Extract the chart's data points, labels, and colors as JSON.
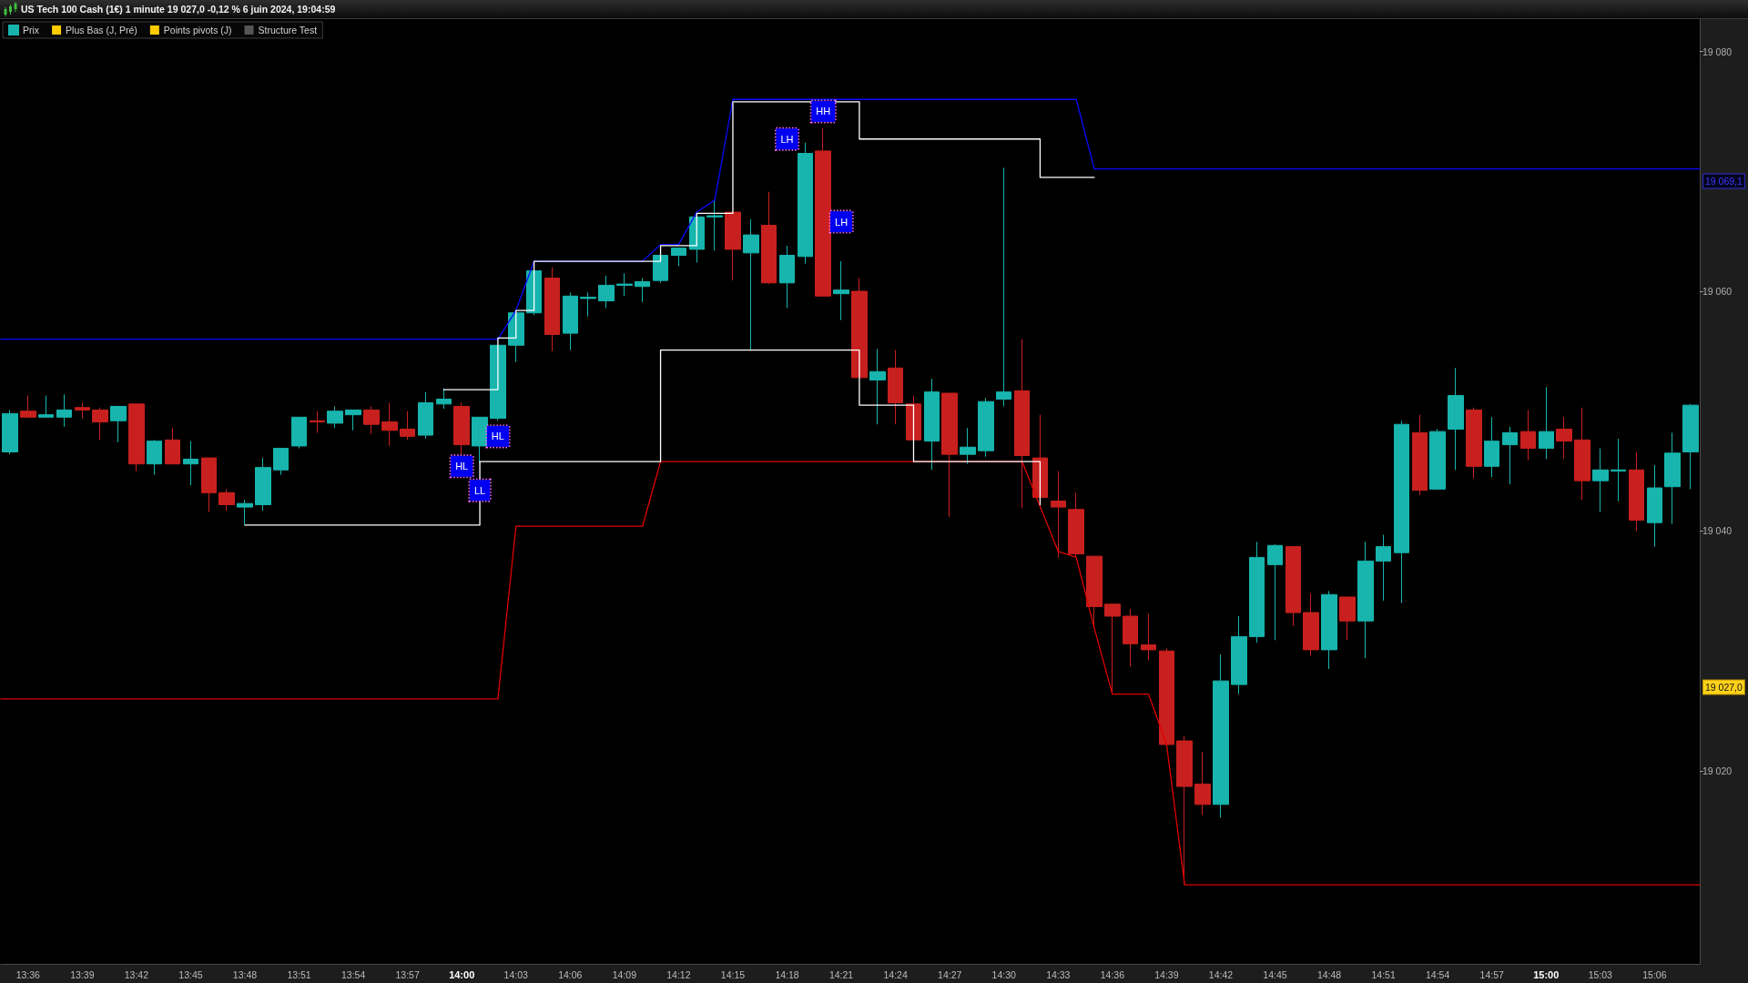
{
  "chart_data": {
    "type": "candlestick",
    "title": "US Tech 100 Cash (1€) 1 minute 19 027,0 -0,12 % 6 juin 2024, 19:04:59",
    "x": [
      "2024-06-06T13:35",
      "2024-06-06T13:36",
      "2024-06-06T13:37",
      "2024-06-06T13:38",
      "2024-06-06T13:39",
      "2024-06-06T13:40",
      "2024-06-06T13:41",
      "2024-06-06T13:42",
      "2024-06-06T13:43",
      "2024-06-06T13:44",
      "2024-06-06T13:45",
      "2024-06-06T13:46",
      "2024-06-06T13:47",
      "2024-06-06T13:48",
      "2024-06-06T13:49",
      "2024-06-06T13:50",
      "2024-06-06T13:51",
      "2024-06-06T13:52",
      "2024-06-06T13:53",
      "2024-06-06T13:54",
      "2024-06-06T13:55",
      "2024-06-06T13:56",
      "2024-06-06T13:57",
      "2024-06-06T13:58",
      "2024-06-06T13:59",
      "2024-06-06T14:00",
      "2024-06-06T14:01",
      "2024-06-06T14:02",
      "2024-06-06T14:03",
      "2024-06-06T14:04",
      "2024-06-06T14:05",
      "2024-06-06T14:06",
      "2024-06-06T14:07",
      "2024-06-06T14:08",
      "2024-06-06T14:09",
      "2024-06-06T14:10",
      "2024-06-06T14:11",
      "2024-06-06T14:12",
      "2024-06-06T14:13",
      "2024-06-06T14:14",
      "2024-06-06T14:15",
      "2024-06-06T14:16",
      "2024-06-06T14:17",
      "2024-06-06T14:18",
      "2024-06-06T14:19",
      "2024-06-06T14:20",
      "2024-06-06T14:21",
      "2024-06-06T14:22",
      "2024-06-06T14:23",
      "2024-06-06T14:24",
      "2024-06-06T14:25",
      "2024-06-06T14:26",
      "2024-06-06T14:27",
      "2024-06-06T14:28",
      "2024-06-06T14:29",
      "2024-06-06T14:30",
      "2024-06-06T14:31",
      "2024-06-06T14:32",
      "2024-06-06T14:33",
      "2024-06-06T14:34",
      "2024-06-06T14:35",
      "2024-06-06T14:36",
      "2024-06-06T14:37",
      "2024-06-06T14:38",
      "2024-06-06T14:39",
      "2024-06-06T14:40",
      "2024-06-06T14:41",
      "2024-06-06T14:42",
      "2024-06-06T14:43",
      "2024-06-06T14:44",
      "2024-06-06T14:45",
      "2024-06-06T14:46",
      "2024-06-06T14:47",
      "2024-06-06T14:48",
      "2024-06-06T14:49",
      "2024-06-06T14:50",
      "2024-06-06T14:51",
      "2024-06-06T14:52",
      "2024-06-06T14:53",
      "2024-06-06T14:54",
      "2024-06-06T14:55",
      "2024-06-06T14:56",
      "2024-06-06T14:57",
      "2024-06-06T14:58",
      "2024-06-06T14:59",
      "2024-06-06T15:00",
      "2024-06-06T15:01",
      "2024-06-06T15:02",
      "2024-06-06T15:03",
      "2024-06-06T15:04",
      "2024-06-06T15:05",
      "2024-06-06T15:06",
      "2024-06-06T15:07",
      "2024-06-06T15:08"
    ],
    "xlim": [
      "2024-06-06T13:34:30",
      "2024-06-06T15:08:30"
    ],
    "xticks": [
      {
        "value": "2024-06-06T13:36",
        "label": "13:36"
      },
      {
        "value": "2024-06-06T13:39",
        "label": "13:39"
      },
      {
        "value": "2024-06-06T13:42",
        "label": "13:42"
      },
      {
        "value": "2024-06-06T13:45",
        "label": "13:45"
      },
      {
        "value": "2024-06-06T13:48",
        "label": "13:48"
      },
      {
        "value": "2024-06-06T13:51",
        "label": "13:51"
      },
      {
        "value": "2024-06-06T13:54",
        "label": "13:54"
      },
      {
        "value": "2024-06-06T13:57",
        "label": "13:57"
      },
      {
        "value": "2024-06-06T14:00",
        "label": "14:00"
      },
      {
        "value": "2024-06-06T14:03",
        "label": "14:03"
      },
      {
        "value": "2024-06-06T14:06",
        "label": "14:06"
      },
      {
        "value": "2024-06-06T14:09",
        "label": "14:09"
      },
      {
        "value": "2024-06-06T14:12",
        "label": "14:12"
      },
      {
        "value": "2024-06-06T14:15",
        "label": "14:15"
      },
      {
        "value": "2024-06-06T14:18",
        "label": "14:18"
      },
      {
        "value": "2024-06-06T14:21",
        "label": "14:21"
      },
      {
        "value": "2024-06-06T14:24",
        "label": "14:24"
      },
      {
        "value": "2024-06-06T14:27",
        "label": "14:27"
      },
      {
        "value": "2024-06-06T14:30",
        "label": "14:30"
      },
      {
        "value": "2024-06-06T14:33",
        "label": "14:33"
      },
      {
        "value": "2024-06-06T14:36",
        "label": "14:36"
      },
      {
        "value": "2024-06-06T14:39",
        "label": "14:39"
      },
      {
        "value": "2024-06-06T14:42",
        "label": "14:42"
      },
      {
        "value": "2024-06-06T14:45",
        "label": "14:45"
      },
      {
        "value": "2024-06-06T14:48",
        "label": "14:48"
      },
      {
        "value": "2024-06-06T14:51",
        "label": "14:51"
      },
      {
        "value": "2024-06-06T14:54",
        "label": "14:54"
      },
      {
        "value": "2024-06-06T14:57",
        "label": "14:57"
      },
      {
        "value": "2024-06-06T15:00",
        "label": "15:00"
      },
      {
        "value": "2024-06-06T15:03",
        "label": "15:03"
      },
      {
        "value": "2024-06-06T15:06",
        "label": "15:06"
      }
    ],
    "ylim": [
      19003.9,
      19082.7
    ],
    "yticks": [
      {
        "value": 19020,
        "label": "19 020"
      },
      {
        "value": 19040,
        "label": "19 040"
      },
      {
        "value": 19060,
        "label": "19 060"
      },
      {
        "value": 19080,
        "label": "19 080"
      }
    ],
    "legend": "top left",
    "grid": false,
    "marker": "none",
    "line_style": "solid",
    "series": [
      {
        "name": "Prix",
        "ohlc": [
          [
            19046.6,
            19050.1,
            19046.4,
            19049.8
          ],
          [
            19050.0,
            19051.3,
            19049.5,
            19049.5
          ],
          [
            19049.5,
            19051.3,
            19049.5,
            19049.7
          ],
          [
            19049.5,
            19051.4,
            19048.7,
            19050.1
          ],
          [
            19050.3,
            19050.7,
            19049.4,
            19050.1
          ],
          [
            19050.1,
            19050.3,
            19047.6,
            19049.1
          ],
          [
            19049.2,
            19050.4,
            19047.4,
            19050.4
          ],
          [
            19050.6,
            19050.6,
            19045.0,
            19045.6
          ],
          [
            19045.6,
            19047.6,
            19044.7,
            19047.5
          ],
          [
            19047.6,
            19048.6,
            19045.6,
            19045.6
          ],
          [
            19045.6,
            19047.5,
            19043.8,
            19046.0
          ],
          [
            19046.1,
            19046.1,
            19041.6,
            19043.2
          ],
          [
            19043.2,
            19043.5,
            19041.7,
            19042.2
          ],
          [
            19042.0,
            19042.6,
            19040.5,
            19042.3
          ],
          [
            19042.2,
            19046.1,
            19041.7,
            19045.3
          ],
          [
            19045.1,
            19046.9,
            19044.7,
            19046.9
          ],
          [
            19047.1,
            19049.5,
            19046.9,
            19049.5
          ],
          [
            19049.2,
            19050.0,
            19048.2,
            19049.1
          ],
          [
            19049.0,
            19050.4,
            19048.6,
            19050.0
          ],
          [
            19049.7,
            19050.1,
            19048.4,
            19050.1
          ],
          [
            19050.1,
            19050.4,
            19048.1,
            19048.9
          ],
          [
            19049.1,
            19050.7,
            19047.1,
            19048.4
          ],
          [
            19048.5,
            19050.0,
            19047.6,
            19047.9
          ],
          [
            19048.0,
            19051.6,
            19047.7,
            19050.7
          ],
          [
            19050.6,
            19051.9,
            19050.2,
            19051.0
          ],
          [
            19050.4,
            19050.7,
            19046.4,
            19047.2
          ],
          [
            19047.1,
            19049.5,
            19045.7,
            19049.5
          ],
          [
            19049.4,
            19055.5,
            19049.2,
            19055.5
          ],
          [
            19055.5,
            19058.4,
            19054.1,
            19058.2
          ],
          [
            19058.2,
            19061.7,
            19058.0,
            19061.7
          ],
          [
            19061.1,
            19062.0,
            19055.0,
            19056.4
          ],
          [
            19056.5,
            19059.9,
            19055.1,
            19059.6
          ],
          [
            19059.4,
            19059.9,
            19057.9,
            19059.5
          ],
          [
            19059.2,
            19061.3,
            19058.6,
            19060.5
          ],
          [
            19060.5,
            19061.5,
            19059.6,
            19060.6
          ],
          [
            19060.4,
            19061.1,
            19059.1,
            19060.8
          ],
          [
            19060.9,
            19063.0,
            19060.7,
            19063.0
          ],
          [
            19063.0,
            19063.6,
            19062.1,
            19063.6
          ],
          [
            19063.5,
            19066.5,
            19062.4,
            19066.2
          ],
          [
            19066.2,
            19067.6,
            19063.4,
            19066.3
          ],
          [
            19066.6,
            19066.6,
            19060.9,
            19063.5
          ],
          [
            19063.2,
            19066.0,
            19055.1,
            19064.7
          ],
          [
            19065.5,
            19068.3,
            19060.6,
            19060.7
          ],
          [
            19060.7,
            19063.8,
            19058.6,
            19063.0
          ],
          [
            19062.9,
            19072.4,
            19062.3,
            19071.5
          ],
          [
            19071.7,
            19073.6,
            19059.6,
            19059.6
          ],
          [
            19059.8,
            19062.5,
            19057.6,
            19060.1
          ],
          [
            19060.0,
            19061.1,
            19052.8,
            19052.8
          ],
          [
            19052.6,
            19055.2,
            19048.9,
            19053.3
          ],
          [
            19053.6,
            19055.1,
            19048.9,
            19050.7
          ],
          [
            19050.6,
            19051.3,
            19047.6,
            19047.6
          ],
          [
            19047.5,
            19052.7,
            19045.1,
            19051.6
          ],
          [
            19051.5,
            19051.5,
            19041.2,
            19046.4
          ],
          [
            19046.4,
            19048.6,
            19045.6,
            19047.0
          ],
          [
            19046.7,
            19051.1,
            19046.2,
            19050.8
          ],
          [
            19051.0,
            19070.3,
            19050.4,
            19051.6
          ],
          [
            19051.7,
            19056.0,
            19041.9,
            19046.3
          ],
          [
            19046.1,
            19049.7,
            19041.9,
            19042.8
          ],
          [
            19042.5,
            19045.0,
            19037.8,
            19042.0
          ],
          [
            19041.8,
            19043.2,
            19037.8,
            19038.1
          ],
          [
            19037.9,
            19037.9,
            19031.9,
            19033.7
          ],
          [
            19033.9,
            19033.9,
            19026.4,
            19032.9
          ],
          [
            19032.9,
            19033.5,
            19028.7,
            19030.6
          ],
          [
            19030.5,
            19033.1,
            19029.2,
            19030.1
          ],
          [
            19030.0,
            19030.2,
            19022.2,
            19022.2
          ],
          [
            19022.5,
            19022.9,
            19010.5,
            19018.7
          ],
          [
            19018.9,
            19021.6,
            19016.3,
            19017.2
          ],
          [
            19017.2,
            19029.7,
            19016.1,
            19027.5
          ],
          [
            19027.2,
            19032.9,
            19026.4,
            19031.2
          ],
          [
            19031.2,
            19039.1,
            19030.7,
            19037.8
          ],
          [
            19037.2,
            19038.9,
            19030.9,
            19038.8
          ],
          [
            19038.7,
            19038.7,
            19032.1,
            19033.2
          ],
          [
            19033.2,
            19034.8,
            19029.6,
            19030.1
          ],
          [
            19030.1,
            19035.0,
            19028.5,
            19034.7
          ],
          [
            19034.5,
            19034.5,
            19030.9,
            19032.5
          ],
          [
            19032.5,
            19039.1,
            19029.4,
            19037.5
          ],
          [
            19037.5,
            19039.7,
            19034.2,
            19038.7
          ],
          [
            19038.2,
            19049.2,
            19034.0,
            19048.9
          ],
          [
            19048.2,
            19049.7,
            19043.0,
            19043.4
          ],
          [
            19043.5,
            19048.5,
            19043.5,
            19048.3
          ],
          [
            19048.5,
            19053.6,
            19045.1,
            19051.3
          ],
          [
            19050.1,
            19050.3,
            19044.4,
            19045.4
          ],
          [
            19045.4,
            19049.5,
            19044.5,
            19047.5
          ],
          [
            19047.2,
            19048.7,
            19043.9,
            19048.2
          ],
          [
            19048.3,
            19050.1,
            19045.9,
            19046.9
          ],
          [
            19046.9,
            19052.0,
            19046.0,
            19048.3
          ],
          [
            19048.5,
            19049.5,
            19046.0,
            19047.5
          ],
          [
            19047.6,
            19050.3,
            19042.6,
            19044.2
          ],
          [
            19044.2,
            19046.9,
            19041.6,
            19045.1
          ],
          [
            19045.0,
            19047.7,
            19042.5,
            19045.1
          ],
          [
            19045.1,
            19046.6,
            19040.0,
            19040.9
          ],
          [
            19040.7,
            19045.5,
            19038.7,
            19043.6
          ],
          [
            19043.7,
            19048.2,
            19040.6,
            19046.5
          ],
          [
            19046.6,
            19050.6,
            19043.5,
            19050.5
          ]
        ],
        "colors": [
          "#17b5ad",
          "#c8201e",
          "#17b5ad",
          "#17b5ad",
          "#c8201e",
          "#c8201e",
          "#17b5ad",
          "#c8201e",
          "#17b5ad",
          "#c8201e",
          "#17b5ad",
          "#c8201e",
          "#c8201e",
          "#17b5ad",
          "#17b5ad",
          "#17b5ad",
          "#17b5ad",
          "#c8201e",
          "#17b5ad",
          "#17b5ad",
          "#c8201e",
          "#c8201e",
          "#c8201e",
          "#17b5ad",
          "#17b5ad",
          "#c8201e",
          "#17b5ad",
          "#17b5ad",
          "#17b5ad",
          "#17b5ad",
          "#c8201e",
          "#17b5ad",
          "#17b5ad",
          "#17b5ad",
          "#17b5ad",
          "#17b5ad",
          "#17b5ad",
          "#17b5ad",
          "#17b5ad",
          "#17b5ad",
          "#c8201e",
          "#17b5ad",
          "#c8201e",
          "#17b5ad",
          "#17b5ad",
          "#c8201e",
          "#17b5ad",
          "#c8201e",
          "#17b5ad",
          "#c8201e",
          "#c8201e",
          "#17b5ad",
          "#c8201e",
          "#17b5ad",
          "#17b5ad",
          "#17b5ad",
          "#c8201e",
          "#c8201e",
          "#c8201e",
          "#c8201e",
          "#c8201e",
          "#c8201e",
          "#c8201e",
          "#c8201e",
          "#c8201e",
          "#c8201e",
          "#c8201e",
          "#17b5ad",
          "#17b5ad",
          "#17b5ad",
          "#17b5ad",
          "#c8201e",
          "#c8201e",
          "#17b5ad",
          "#c8201e",
          "#17b5ad",
          "#17b5ad",
          "#17b5ad",
          "#c8201e",
          "#17b5ad",
          "#17b5ad",
          "#c8201e",
          "#17b5ad",
          "#17b5ad",
          "#c8201e",
          "#17b5ad",
          "#c8201e",
          "#c8201e",
          "#17b5ad",
          "#17b5ad",
          "#c8201e",
          "#17b5ad",
          "#17b5ad",
          "#17b5ad"
        ]
      },
      {
        "name": "Plus Bas (J, Pré)",
        "type": "line",
        "color": "#ffcc00",
        "values": [
          null,
          null,
          null,
          null,
          null,
          null,
          null,
          null,
          null,
          null,
          null,
          null,
          null,
          null,
          null,
          null,
          null,
          null,
          null,
          null,
          null,
          null,
          null,
          null,
          null,
          null,
          null,
          null,
          null,
          null,
          null,
          null,
          null,
          null,
          null,
          null,
          null,
          null,
          null,
          null,
          null,
          null,
          null,
          null,
          null,
          null,
          null,
          null,
          null,
          null,
          null,
          null,
          null,
          null,
          null,
          null,
          null,
          null,
          null,
          null,
          null,
          null,
          null,
          null,
          null,
          null,
          null,
          null,
          null,
          null,
          null,
          null,
          null,
          null,
          null,
          null,
          null,
          null,
          null,
          null,
          null,
          null,
          null,
          null,
          null,
          null,
          null,
          null,
          null,
          null,
          null,
          null,
          null,
          null
        ]
      },
      {
        "name": "Points pivots (J)",
        "type": "line",
        "color": "#ffcc00",
        "values": [
          null,
          null,
          null,
          null,
          null,
          null,
          null,
          null,
          null,
          null,
          null,
          null,
          null,
          null,
          null,
          null,
          null,
          null,
          null,
          null,
          null,
          null,
          null,
          null,
          null,
          null,
          null,
          null,
          null,
          null,
          null,
          null,
          null,
          null,
          null,
          null,
          null,
          null,
          null,
          null,
          null,
          null,
          null,
          null,
          null,
          null,
          null,
          null,
          null,
          null,
          null,
          null,
          null,
          null,
          null,
          null,
          null,
          null,
          null,
          null,
          null,
          null,
          null,
          null,
          null,
          null,
          null,
          null,
          null,
          null,
          null,
          null,
          null,
          null,
          null,
          null,
          null,
          null,
          null,
          null,
          null,
          null,
          null,
          null,
          null,
          null,
          null,
          null,
          null,
          null,
          null,
          null,
          null,
          null
        ]
      },
      {
        "name": "Structure Test",
        "type": "line",
        "color": "#555555",
        "values": [
          null,
          null,
          null,
          null,
          null,
          null,
          null,
          null,
          null,
          null,
          null,
          null,
          null,
          null,
          null,
          null,
          null,
          null,
          null,
          null,
          null,
          null,
          null,
          null,
          null,
          null,
          null,
          null,
          null,
          null,
          null,
          null,
          null,
          null,
          null,
          null,
          null,
          null,
          null,
          null,
          null,
          null,
          null,
          null,
          null,
          null,
          null,
          null,
          null,
          null,
          null,
          null,
          null,
          null,
          null,
          null,
          null,
          null,
          null,
          null,
          null,
          null,
          null,
          null,
          null,
          null,
          null,
          null,
          null,
          null,
          null,
          null,
          null,
          null,
          null,
          null,
          null,
          null,
          null,
          null,
          null,
          null,
          null,
          null,
          null,
          null,
          null,
          null,
          null,
          null,
          null,
          null,
          null,
          null
        ]
      },
      {
        "type": "line",
        "color": "#0a0aff",
        "x": [
          "2024-06-06T13:34:30",
          "2024-06-06T14:02",
          "2024-06-06T14:03",
          "2024-06-06T14:04",
          "2024-06-06T14:10",
          "2024-06-06T14:11",
          "2024-06-06T14:12",
          "2024-06-06T14:13",
          "2024-06-06T14:14",
          "2024-06-06T14:15",
          "2024-06-06T14:34",
          "2024-06-06T14:35",
          "2024-06-06T15:08:30"
        ],
        "values": [
          19056.0,
          19056.0,
          19058.4,
          19062.5,
          19062.5,
          19063.9,
          19063.9,
          19066.6,
          19067.6,
          19076.0,
          19076.0,
          19070.2,
          19070.2
        ]
      },
      {
        "type": "line",
        "color": "#e00000",
        "x": [
          "2024-06-06T13:34:30",
          "2024-06-06T14:02",
          "2024-06-06T14:03",
          "2024-06-06T14:10",
          "2024-06-06T14:11",
          "2024-06-06T14:31",
          "2024-06-06T14:33",
          "2024-06-06T14:34",
          "2024-06-06T14:35",
          "2024-06-06T14:36",
          "2024-06-06T14:38",
          "2024-06-06T14:39",
          "2024-06-06T14:40",
          "2024-06-06T15:08:30"
        ],
        "values": [
          19026.0,
          19026.0,
          19040.4,
          19040.4,
          19045.8,
          19045.8,
          19038.3,
          19037.8,
          19031.9,
          19026.4,
          19026.4,
          19022.2,
          19010.5,
          19010.5
        ]
      },
      {
        "type": "step",
        "color": "#ffffff",
        "x": [
          "2024-06-06T13:59",
          "2024-06-06T14:02",
          "2024-06-06T14:03",
          "2024-06-06T14:04",
          "2024-06-06T14:11",
          "2024-06-06T14:13",
          "2024-06-06T14:15",
          "2024-06-06T14:22",
          "2024-06-06T14:32",
          "2024-06-06T14:35"
        ],
        "values": [
          19051.8,
          19056.1,
          19058.4,
          19062.5,
          19063.8,
          19066.5,
          19075.8,
          19072.7,
          19069.5,
          19069.5
        ]
      },
      {
        "type": "step",
        "color": "#ffffff",
        "x": [
          "2024-06-06T13:48",
          "2024-06-06T14:01",
          "2024-06-06T14:11",
          "2024-06-06T14:22",
          "2024-06-06T14:25",
          "2024-06-06T14:32"
        ],
        "values": [
          19040.5,
          19045.8,
          19055.1,
          19050.5,
          19045.8,
          19042.2
        ]
      }
    ],
    "annotations": [
      {
        "text": "HL",
        "x": "2024-06-06T14:00",
        "y": 19045.4
      },
      {
        "text": "LL",
        "x": "2024-06-06T14:01",
        "y": 19043.4
      },
      {
        "text": "HL",
        "x": "2024-06-06T14:02",
        "y": 19047.9
      },
      {
        "text": "LH",
        "x": "2024-06-06T14:18",
        "y": 19072.7
      },
      {
        "text": "HH",
        "x": "2024-06-06T14:20",
        "y": 19075.0
      },
      {
        "text": "LH",
        "x": "2024-06-06T14:21",
        "y": 19065.8
      },
      "19 069,1",
      "19 027,0"
    ]
  }
}
